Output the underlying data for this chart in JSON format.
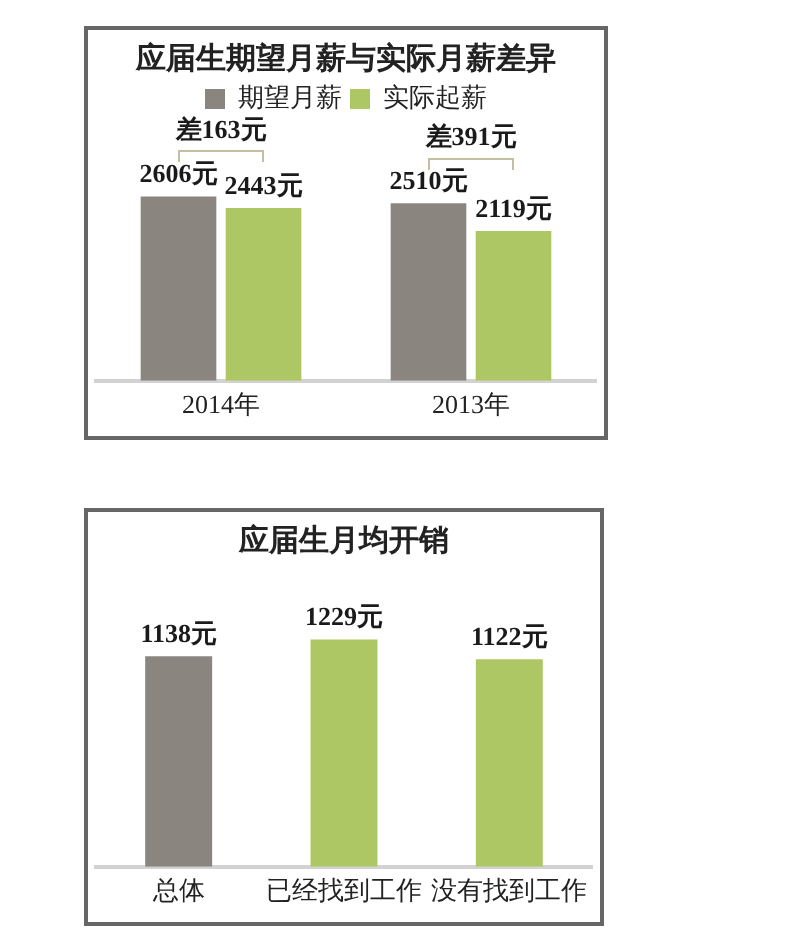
{
  "chart_data": [
    {
      "type": "bar",
      "title": "应届生期望月薪与实际月薪差异",
      "categories": [
        "2014年",
        "2013年"
      ],
      "series": [
        {
          "name": "期望月薪",
          "color": "#8b8580",
          "values": [
            2606,
            2510
          ],
          "value_labels": [
            "2606元",
            "2510元"
          ]
        },
        {
          "name": "实际起薪",
          "color": "#adc764",
          "values": [
            2443,
            2119
          ],
          "value_labels": [
            "2443元",
            "2119元"
          ]
        }
      ],
      "annotations": [
        "差163元",
        "差391元"
      ],
      "legend": "top",
      "tick_labels": "x"
    },
    {
      "type": "bar",
      "title": "应届生月均开销",
      "categories": [
        "总体",
        "已经找到工作",
        "没有找到工作"
      ],
      "values": [
        1138,
        1229,
        1122
      ],
      "colors": [
        "#8b8580",
        "#adc764",
        "#adc764"
      ],
      "value_labels": [
        "1138元",
        "1229元",
        "1122元"
      ],
      "tick_labels": "x"
    }
  ]
}
